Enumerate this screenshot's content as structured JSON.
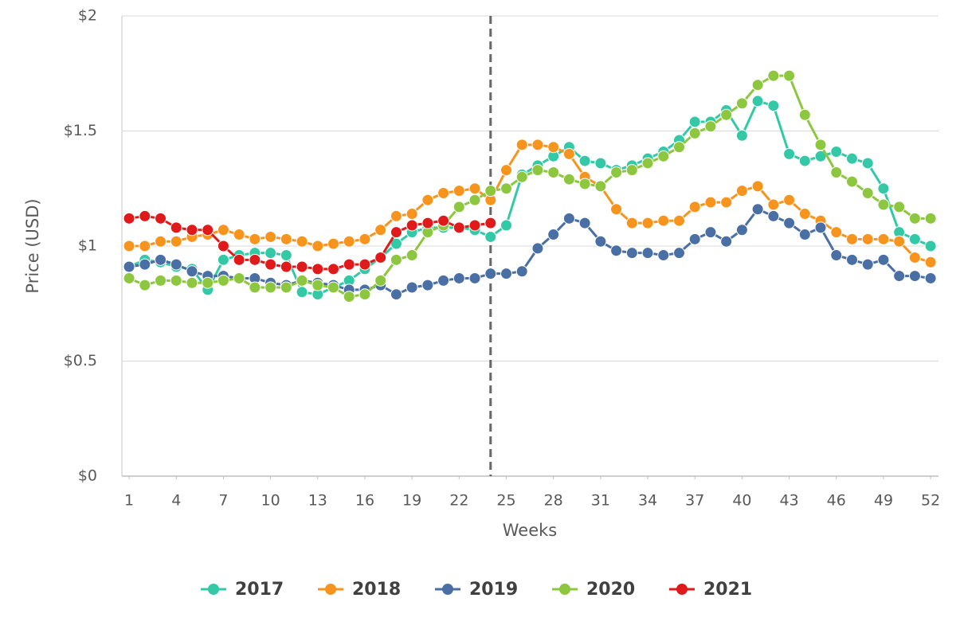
{
  "chart_data": {
    "type": "line",
    "x_label": "Weeks",
    "y_label": "Price (USD)",
    "x": [
      1,
      2,
      3,
      4,
      5,
      6,
      7,
      8,
      9,
      10,
      11,
      12,
      13,
      14,
      15,
      16,
      17,
      18,
      19,
      20,
      21,
      22,
      23,
      24,
      25,
      26,
      27,
      28,
      29,
      30,
      31,
      32,
      33,
      34,
      35,
      36,
      37,
      38,
      39,
      40,
      41,
      42,
      43,
      44,
      45,
      46,
      47,
      48,
      49,
      50,
      51,
      52
    ],
    "xlim": [
      0.54,
      52.5
    ],
    "xticks": [
      1,
      4,
      7,
      10,
      13,
      16,
      19,
      22,
      25,
      28,
      31,
      34,
      37,
      40,
      43,
      46,
      49,
      52
    ],
    "ylim": [
      0,
      2
    ],
    "yticks": [
      {
        "value": 0,
        "label": "$0"
      },
      {
        "value": 0.5,
        "label": "$0.5"
      },
      {
        "value": 1,
        "label": "$1"
      },
      {
        "value": 1.5,
        "label": "$1.5"
      },
      {
        "value": 2,
        "label": "$2"
      }
    ],
    "grid": true,
    "vline": 24,
    "legend": "bottom",
    "series": [
      {
        "name": "2017",
        "color": "#33c9a7",
        "values": [
          0.91,
          0.94,
          0.93,
          0.91,
          0.9,
          0.81,
          0.94,
          0.96,
          0.97,
          0.97,
          0.96,
          0.8,
          0.79,
          0.82,
          0.85,
          0.9,
          0.95,
          1.01,
          1.06,
          1.08,
          1.08,
          1.08,
          1.07,
          1.04,
          1.09,
          1.31,
          1.35,
          1.39,
          1.43,
          1.37,
          1.36,
          1.33,
          1.35,
          1.38,
          1.41,
          1.46,
          1.54,
          1.54,
          1.59,
          1.48,
          1.63,
          1.61,
          1.4,
          1.37,
          1.39,
          1.41,
          1.38,
          1.36,
          1.25,
          1.06,
          1.03,
          1.0
        ]
      },
      {
        "name": "2018",
        "color": "#f7941d",
        "values": [
          1.0,
          1.0,
          1.02,
          1.02,
          1.04,
          1.05,
          1.07,
          1.05,
          1.03,
          1.04,
          1.03,
          1.02,
          1.0,
          1.01,
          1.02,
          1.03,
          1.07,
          1.13,
          1.14,
          1.2,
          1.23,
          1.24,
          1.25,
          1.2,
          1.33,
          1.44,
          1.44,
          1.43,
          1.4,
          1.3,
          1.26,
          1.16,
          1.1,
          1.1,
          1.11,
          1.11,
          1.17,
          1.19,
          1.19,
          1.24,
          1.26,
          1.18,
          1.2,
          1.14,
          1.11,
          1.06,
          1.03,
          1.03,
          1.03,
          1.02,
          0.95,
          0.93
        ]
      },
      {
        "name": "2019",
        "color": "#4a6fa5",
        "values": [
          0.91,
          0.92,
          0.94,
          0.92,
          0.89,
          0.87,
          0.87,
          0.86,
          0.86,
          0.84,
          0.83,
          0.85,
          0.84,
          0.83,
          0.81,
          0.81,
          0.83,
          0.79,
          0.82,
          0.83,
          0.85,
          0.86,
          0.86,
          0.88,
          0.88,
          0.89,
          0.99,
          1.05,
          1.12,
          1.1,
          1.02,
          0.98,
          0.97,
          0.97,
          0.96,
          0.97,
          1.03,
          1.06,
          1.02,
          1.07,
          1.16,
          1.13,
          1.1,
          1.05,
          1.08,
          0.96,
          0.94,
          0.92,
          0.94,
          0.87,
          0.87,
          0.86
        ]
      },
      {
        "name": "2020",
        "color": "#8dc63f",
        "values": [
          0.86,
          0.83,
          0.85,
          0.85,
          0.84,
          0.84,
          0.85,
          0.86,
          0.82,
          0.82,
          0.82,
          0.85,
          0.83,
          0.82,
          0.78,
          0.79,
          0.85,
          0.94,
          0.96,
          1.06,
          1.09,
          1.17,
          1.2,
          1.24,
          1.25,
          1.3,
          1.33,
          1.32,
          1.29,
          1.27,
          1.26,
          1.32,
          1.33,
          1.36,
          1.39,
          1.43,
          1.49,
          1.52,
          1.57,
          1.62,
          1.7,
          1.74,
          1.74,
          1.57,
          1.44,
          1.32,
          1.28,
          1.23,
          1.18,
          1.17,
          1.12,
          1.12
        ]
      },
      {
        "name": "2021",
        "color": "#e0191a",
        "values": [
          1.12,
          1.13,
          1.12,
          1.08,
          1.07,
          1.07,
          1.0,
          0.94,
          0.94,
          0.92,
          0.91,
          0.91,
          0.9,
          0.9,
          0.92,
          0.92,
          0.95,
          1.06,
          1.09,
          1.1,
          1.11,
          1.08,
          1.09,
          1.1,
          null,
          null,
          null,
          null,
          null,
          null,
          null,
          null,
          null,
          null,
          null,
          null,
          null,
          null,
          null,
          null,
          null,
          null,
          null,
          null,
          null,
          null,
          null,
          null,
          null,
          null,
          null,
          null
        ]
      }
    ]
  }
}
